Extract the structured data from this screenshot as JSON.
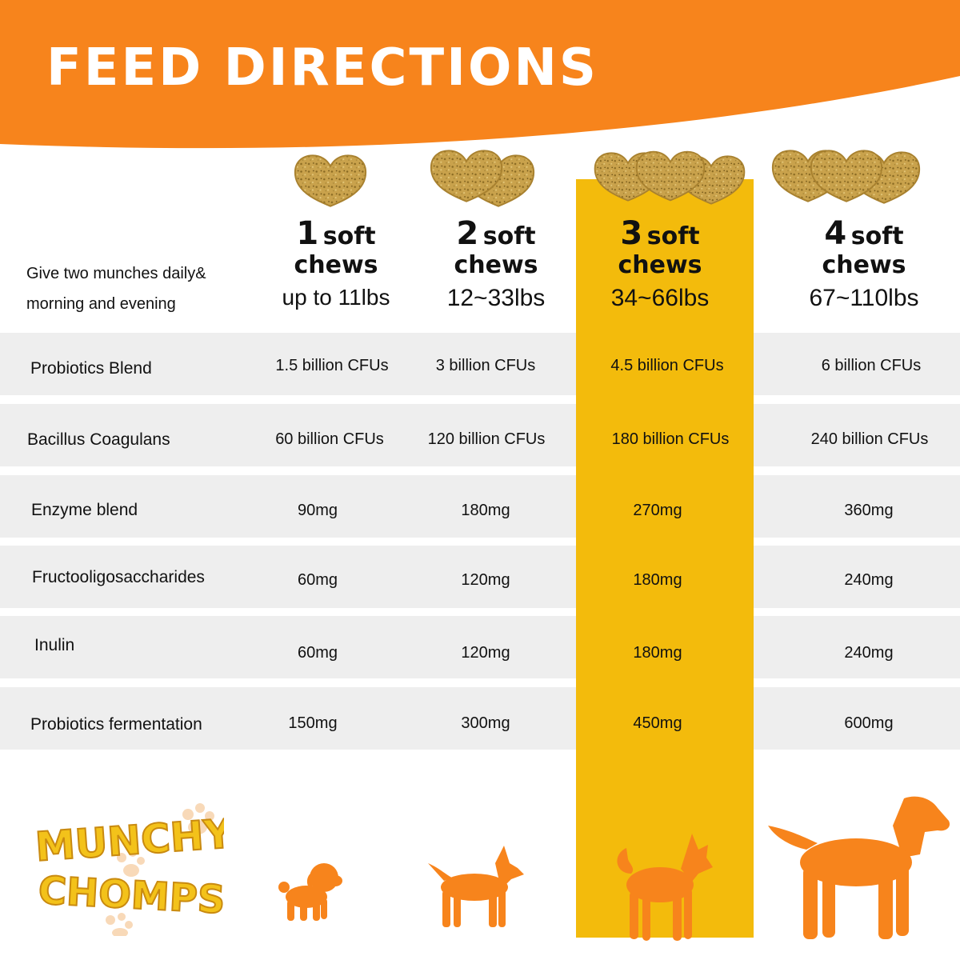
{
  "header": {
    "title": "FEED DIRECTIONS"
  },
  "intro": {
    "line1": "Give two munches daily&",
    "line2": "morning and evening"
  },
  "colors": {
    "orange": "#f7841c",
    "highlight": "#f3bb0c",
    "row_gray": "#eeeeee",
    "chew": "#c9a24c"
  },
  "columns": [
    {
      "count": "1",
      "soft": "soft",
      "chews": "chews",
      "weight": "up to 11lbs"
    },
    {
      "count": "2",
      "soft": "soft",
      "chews": "chews",
      "weight": "12~33lbs"
    },
    {
      "count": "3",
      "soft": "soft",
      "chews": "chews",
      "weight": "34~66lbs"
    },
    {
      "count": "4",
      "soft": "soft",
      "chews": "chews",
      "weight": "67~110lbs"
    }
  ],
  "rows": [
    {
      "label": "Probiotics Blend",
      "values": [
        "1.5 billion CFUs",
        "3 billion CFUs",
        "4.5 billion CFUs",
        "6 billion CFUs"
      ]
    },
    {
      "label": "Bacillus Coagulans",
      "values": [
        "60 billion CFUs",
        "120 billion CFUs",
        "180 billion CFUs",
        "240 billion CFUs"
      ]
    },
    {
      "label": "Enzyme blend",
      "values": [
        "90mg",
        "180mg",
        "270mg",
        "360mg"
      ]
    },
    {
      "label": "Fructooligosaccharides",
      "values": [
        "60mg",
        "120mg",
        "180mg",
        "240mg"
      ]
    },
    {
      "label": "Inulin",
      "values": [
        "60mg",
        "120mg",
        "180mg",
        "240mg"
      ]
    },
    {
      "label": "Probiotics fermentation",
      "values": [
        "150mg",
        "300mg",
        "450mg",
        "600mg"
      ]
    }
  ],
  "brand": {
    "line1": "MUNCHY",
    "line2": "CHOMPS"
  },
  "icons": {
    "chew": "heart-chew-icon",
    "paw": "paw-print-icon",
    "dog": "dog-silhouette-icon"
  }
}
